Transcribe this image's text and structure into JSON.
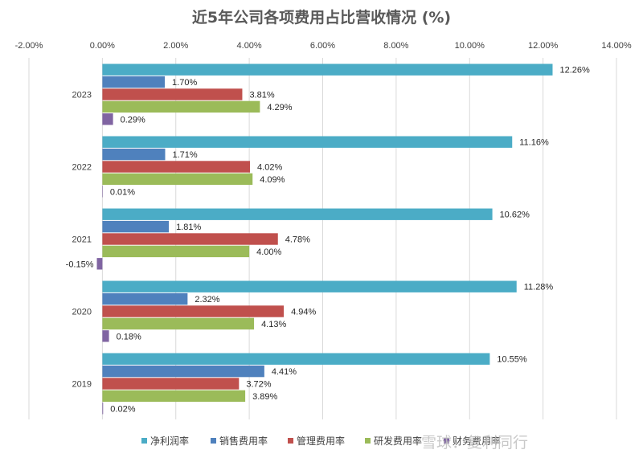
{
  "chart_data": {
    "type": "bar",
    "orientation": "horizontal",
    "title": "近5年公司各项费用占比营收情况 (%)",
    "categories": [
      "2023",
      "2022",
      "2021",
      "2020",
      "2019"
    ],
    "series": [
      {
        "name": "净利润率",
        "color": "#4bacc6",
        "values": [
          12.26,
          11.16,
          10.62,
          11.28,
          10.55
        ]
      },
      {
        "name": "销售费用率",
        "color": "#4f81bd",
        "values": [
          1.7,
          1.71,
          1.81,
          2.32,
          4.41
        ]
      },
      {
        "name": "管理费用率",
        "color": "#c0504d",
        "values": [
          3.81,
          4.02,
          4.78,
          4.94,
          3.72
        ]
      },
      {
        "name": "研发费用率",
        "color": "#9bbb59",
        "values": [
          4.29,
          4.09,
          4.0,
          4.13,
          3.89
        ]
      },
      {
        "name": "财务费用率",
        "color": "#8064a2",
        "values": [
          0.29,
          0.01,
          -0.15,
          0.18,
          0.02
        ]
      }
    ],
    "xlim": [
      -2,
      14
    ],
    "x_ticks": [
      -2,
      0,
      2,
      4,
      6,
      8,
      10,
      12,
      14
    ],
    "x_tick_labels": [
      "-2.00%",
      "0.00%",
      "2.00%",
      "4.00%",
      "6.00%",
      "8.00%",
      "10.00%",
      "12.00%",
      "14.00%"
    ],
    "value_format": "percent_2dp",
    "xaxis_position": "top",
    "grid": true,
    "legend_position": "bottom"
  },
  "watermark": "雪球：复利同行"
}
